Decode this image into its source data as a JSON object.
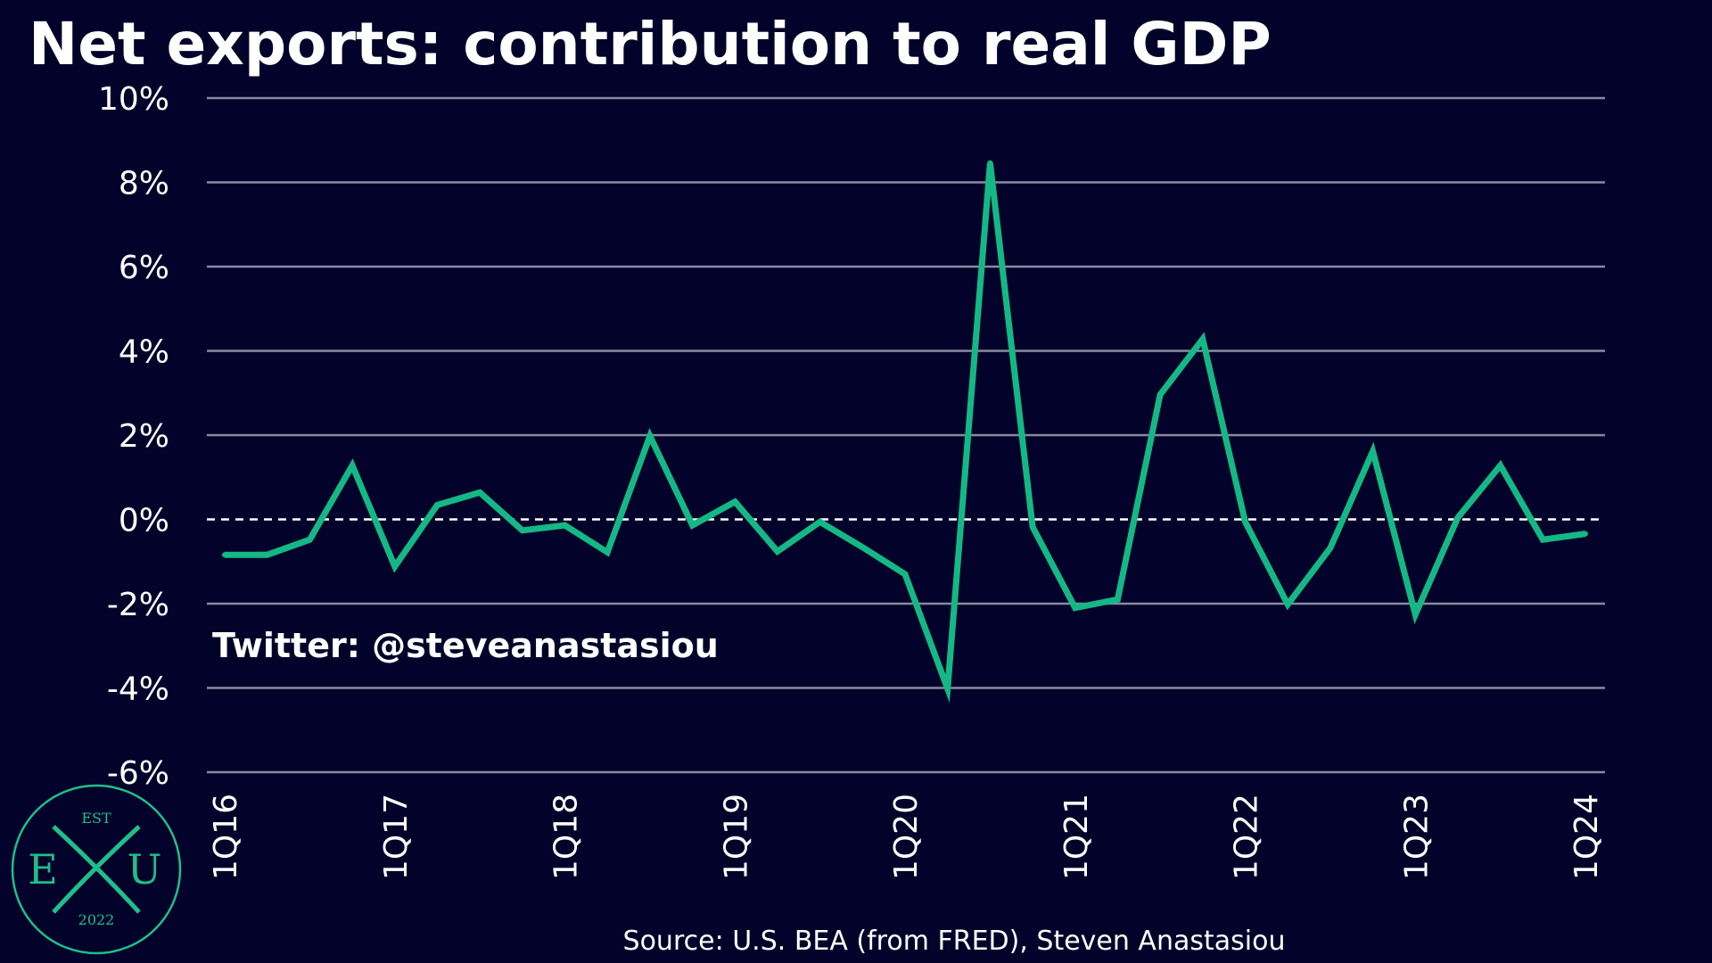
{
  "chart_data": {
    "type": "line",
    "title": "Net exports: contribution to real GDP",
    "xlabel": "",
    "ylabel": "",
    "ylim": [
      -6,
      10
    ],
    "yticks": [
      10,
      8,
      6,
      4,
      2,
      0,
      -2,
      -4,
      -6
    ],
    "ytick_labels": [
      "10%",
      "8%",
      "6%",
      "4%",
      "2%",
      "0%",
      "-2%",
      "-4%",
      "-6%"
    ],
    "xtick_labels": [
      "1Q16",
      "1Q17",
      "1Q18",
      "1Q19",
      "1Q20",
      "1Q21",
      "1Q22",
      "1Q23",
      "1Q24"
    ],
    "xtick_every": 4,
    "zero_line": "dashed",
    "grid": true,
    "line_color": "#14b885",
    "categories": [
      "1Q16",
      "2Q16",
      "3Q16",
      "4Q16",
      "1Q17",
      "2Q17",
      "3Q17",
      "4Q17",
      "1Q18",
      "2Q18",
      "3Q18",
      "4Q18",
      "1Q19",
      "2Q19",
      "3Q19",
      "4Q19",
      "1Q20",
      "2Q20",
      "3Q20",
      "4Q20",
      "1Q21",
      "2Q21",
      "3Q21",
      "4Q21",
      "1Q22",
      "2Q22",
      "3Q22",
      "4Q22",
      "1Q23",
      "2Q23",
      "3Q23",
      "4Q23",
      "1Q24"
    ],
    "values": [
      -0.84,
      -0.84,
      -0.48,
      1.28,
      -1.12,
      0.34,
      0.64,
      -0.26,
      -0.14,
      -0.78,
      1.98,
      -0.14,
      0.42,
      -0.76,
      -0.06,
      -0.66,
      -1.3,
      -4.02,
      8.46,
      -0.18,
      -2.1,
      -1.9,
      2.96,
      4.28,
      -0.06,
      -2.02,
      -0.68,
      1.62,
      -2.26,
      0.04,
      1.28,
      -0.48,
      -0.34
    ]
  },
  "annotation": {
    "handle": "Twitter: @steveanastasiou",
    "source": "Source: U.S. BEA (from FRED), Steven Anastasiou"
  },
  "logo": {
    "top": "EST",
    "left": "E",
    "center": "X",
    "right": "U",
    "bottom": "2022"
  },
  "colors": {
    "background": "#02022a",
    "grid": "#8a8aa0",
    "line": "#14b885",
    "logo": "#1fbf8a"
  }
}
